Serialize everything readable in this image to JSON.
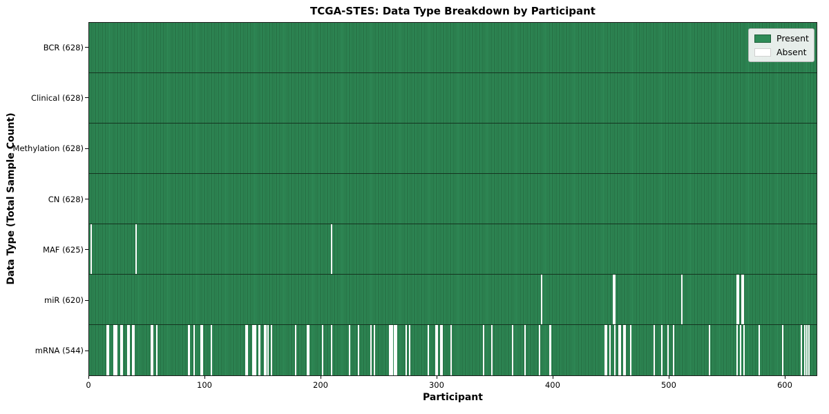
{
  "title": "TCGA-STES: Data Type Breakdown by Participant",
  "chart_data": {
    "type": "heatmap",
    "title": "TCGA-STES: Data Type Breakdown by Participant",
    "xlabel": "Participant",
    "ylabel": "Data Type (Total Sample Count)",
    "n_participants": 628,
    "xlim": [
      0,
      628
    ],
    "x_ticks": [
      0,
      100,
      200,
      300,
      400,
      500,
      600
    ],
    "grid": false,
    "legend": {
      "position": "upper right",
      "entries": [
        {
          "label": "Present",
          "color": "#2e8b57",
          "edge": "#1f5f3a"
        },
        {
          "label": "Absent",
          "color": "#ffffff",
          "edge": "#d0d0d0"
        }
      ]
    },
    "colors": {
      "present": "#2e8b57",
      "absent": "#ffffff",
      "bar_edge": "#226039",
      "row_divider": "#14331f"
    },
    "rows": [
      {
        "data_type": "BCR",
        "label": "BCR (628)",
        "present_count": 628,
        "absent_participants": []
      },
      {
        "data_type": "Clinical",
        "label": "Clinical (628)",
        "present_count": 628,
        "absent_participants": []
      },
      {
        "data_type": "Methylation",
        "label": "Methylation (628)",
        "present_count": 628,
        "absent_participants": []
      },
      {
        "data_type": "CN",
        "label": "CN (628)",
        "present_count": 628,
        "absent_participants": []
      },
      {
        "data_type": "MAF",
        "label": "MAF (625)",
        "present_count": 625,
        "absent_participants": [
          1,
          40,
          209
        ]
      },
      {
        "data_type": "miR",
        "label": "miR (620)",
        "present_count": 620,
        "absent_participants": [
          390,
          452,
          453,
          511,
          559,
          560,
          563,
          564
        ]
      },
      {
        "data_type": "mRNA",
        "label": "mRNA (544)",
        "present_count": 544,
        "absent_participants": [
          15,
          16,
          21,
          22,
          23,
          27,
          28,
          33,
          34,
          37,
          38,
          53,
          54,
          58,
          85,
          86,
          90,
          96,
          97,
          105,
          135,
          136,
          141,
          142,
          143,
          146,
          147,
          151,
          152,
          154,
          157,
          178,
          188,
          189,
          201,
          209,
          224,
          232,
          243,
          246,
          259,
          260,
          261,
          263,
          264,
          265,
          273,
          276,
          292,
          299,
          300,
          303,
          304,
          312,
          340,
          347,
          365,
          376,
          388,
          397,
          398,
          445,
          446,
          449,
          453,
          457,
          458,
          461,
          462,
          467,
          487,
          494,
          499,
          504,
          535,
          559,
          562,
          565,
          578,
          598,
          614,
          617,
          619,
          621
        ]
      }
    ]
  }
}
